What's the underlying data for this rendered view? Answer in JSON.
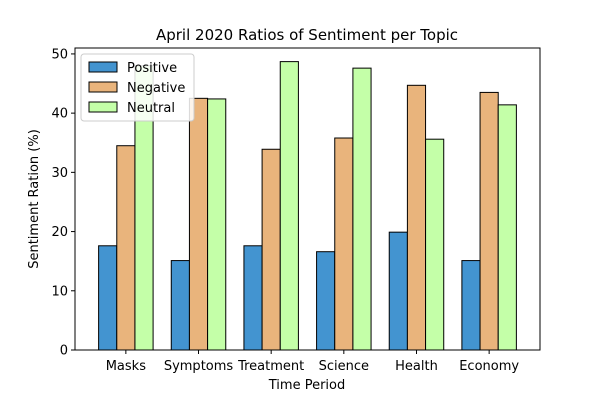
{
  "chart_data": {
    "type": "bar",
    "title": "April 2020 Ratios of Sentiment per Topic",
    "xlabel": "Time Period",
    "ylabel": "Sentiment Ration (%)",
    "ylim": [
      0,
      51
    ],
    "yticks": [
      0,
      10,
      20,
      30,
      40,
      50
    ],
    "categories": [
      "Masks",
      "Symptoms",
      "Treatment",
      "Science",
      "Health",
      "Economy"
    ],
    "series": [
      {
        "name": "Positive",
        "color": "#4394d0",
        "values": [
          17.6,
          15.1,
          17.6,
          16.6,
          19.9,
          15.1
        ]
      },
      {
        "name": "Negative",
        "color": "#e9b47c",
        "values": [
          34.5,
          42.5,
          33.9,
          35.8,
          44.7,
          43.5
        ]
      },
      {
        "name": "Neutral",
        "color": "#c4ffa8",
        "values": [
          48.0,
          42.4,
          48.7,
          47.6,
          35.6,
          41.4
        ]
      }
    ],
    "legend": "top-left",
    "grid": false
  }
}
